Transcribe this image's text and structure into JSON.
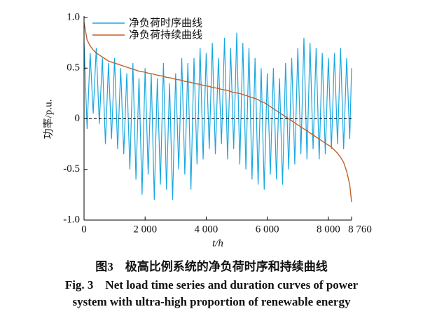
{
  "chart_data": {
    "type": "line",
    "legend_position": "upper left",
    "xlabel": "t/h",
    "ylabel": "功率/p.u.",
    "caption": [
      "图3　极高比例系统的净负荷时序和持续曲线",
      "Fig. 3　Net load time series and duration curves of power",
      "system with ultra-high proportion of renewable energy"
    ],
    "xlim": [
      0,
      8760
    ],
    "ylim": [
      -1.0,
      1.0
    ],
    "xticks": [
      0,
      {
        "value": 2000,
        "label": "2 000"
      },
      {
        "value": 4000,
        "label": "4 000"
      },
      {
        "value": 6000,
        "label": "6 000"
      },
      {
        "value": 8000,
        "label": "8 000"
      },
      {
        "value": 8760,
        "label": "8 760"
      }
    ],
    "yticks": [
      {
        "value": -1.0,
        "label": "-1.0"
      },
      -0.5,
      0,
      0.5,
      {
        "value": 1.0,
        "label": "1.0"
      }
    ],
    "hline": 0,
    "x": [
      0,
      100,
      200,
      300,
      400,
      500,
      600,
      700,
      800,
      900,
      1000,
      1100,
      1200,
      1300,
      1400,
      1500,
      1600,
      1700,
      1800,
      1900,
      2000,
      2100,
      2200,
      2300,
      2400,
      2500,
      2600,
      2700,
      2800,
      2900,
      3000,
      3100,
      3200,
      3300,
      3400,
      3500,
      3600,
      3700,
      3800,
      3900,
      4000,
      4100,
      4200,
      4300,
      4400,
      4500,
      4600,
      4700,
      4800,
      4900,
      5000,
      5100,
      5200,
      5300,
      5400,
      5500,
      5600,
      5700,
      5800,
      5900,
      6000,
      6100,
      6200,
      6300,
      6400,
      6500,
      6600,
      6700,
      6800,
      6900,
      7000,
      7100,
      7200,
      7300,
      7400,
      7500,
      7600,
      7700,
      7800,
      7900,
      8000,
      8100,
      8200,
      8300,
      8400,
      8500,
      8600,
      8700,
      8760
    ],
    "series": [
      {
        "name": "净负荷时序曲线",
        "color": "#1aa7e0",
        "values": [
          0.75,
          -0.1,
          0.65,
          0.05,
          0.7,
          -0.05,
          0.6,
          -0.25,
          0.55,
          -0.2,
          0.6,
          -0.3,
          0.5,
          -0.35,
          0.45,
          -0.5,
          0.55,
          -0.6,
          0.4,
          -0.75,
          0.5,
          -0.55,
          0.45,
          -0.8,
          0.4,
          -0.65,
          0.55,
          -0.7,
          0.35,
          -0.8,
          0.45,
          -0.5,
          0.6,
          -0.55,
          0.55,
          -0.7,
          0.6,
          -0.45,
          0.7,
          -0.4,
          0.65,
          -0.3,
          0.75,
          -0.35,
          0.6,
          -0.25,
          0.8,
          -0.4,
          0.7,
          -0.3,
          0.85,
          -0.45,
          0.75,
          -0.5,
          0.7,
          -0.6,
          0.6,
          -0.65,
          0.5,
          -0.7,
          0.45,
          -0.55,
          0.5,
          -0.6,
          0.4,
          -0.65,
          0.55,
          -0.5,
          0.6,
          -0.45,
          0.7,
          -0.35,
          0.8,
          -0.4,
          0.75,
          -0.3,
          0.7,
          -0.4,
          0.65,
          -0.35,
          0.6,
          -0.3,
          0.65,
          -0.25,
          0.7,
          -0.3,
          0.6,
          -0.2,
          0.5
        ]
      },
      {
        "name": "净负荷持续曲线",
        "color": "#c0612b",
        "values": [
          0.95,
          0.78,
          0.72,
          0.68,
          0.65,
          0.63,
          0.61,
          0.59,
          0.57,
          0.56,
          0.55,
          0.54,
          0.53,
          0.52,
          0.51,
          0.5,
          0.49,
          0.48,
          0.47,
          0.465,
          0.46,
          0.45,
          0.445,
          0.44,
          0.43,
          0.425,
          0.42,
          0.41,
          0.405,
          0.4,
          0.39,
          0.385,
          0.38,
          0.37,
          0.365,
          0.36,
          0.35,
          0.345,
          0.34,
          0.33,
          0.325,
          0.32,
          0.31,
          0.305,
          0.3,
          0.29,
          0.285,
          0.28,
          0.27,
          0.26,
          0.255,
          0.25,
          0.24,
          0.23,
          0.22,
          0.21,
          0.2,
          0.19,
          0.17,
          0.16,
          0.14,
          0.12,
          0.1,
          0.08,
          0.06,
          0.04,
          0.02,
          0.0,
          -0.02,
          -0.04,
          -0.06,
          -0.08,
          -0.1,
          -0.12,
          -0.14,
          -0.16,
          -0.18,
          -0.2,
          -0.22,
          -0.24,
          -0.26,
          -0.28,
          -0.31,
          -0.34,
          -0.38,
          -0.43,
          -0.52,
          -0.65,
          -0.82
        ]
      }
    ]
  }
}
